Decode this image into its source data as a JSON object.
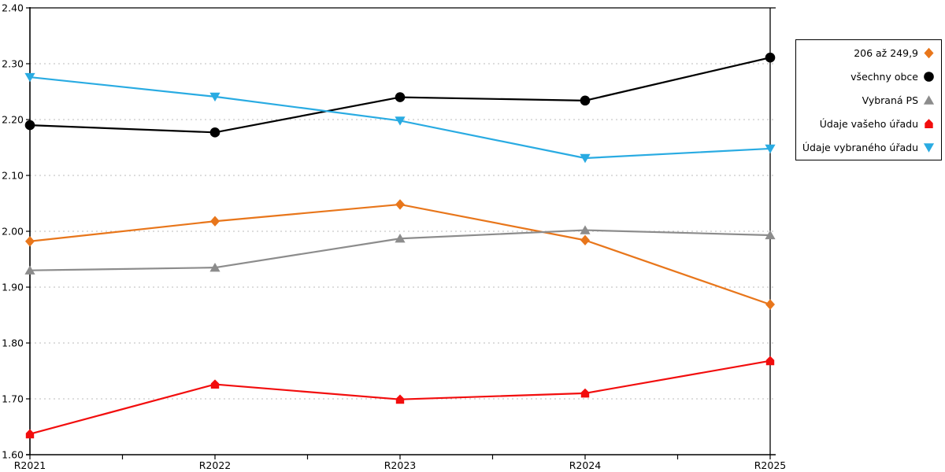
{
  "chart_data": {
    "type": "line",
    "title": "",
    "xlabel": "",
    "ylabel": "",
    "categories": [
      "R2021",
      "R2022",
      "R2023",
      "R2024",
      "R2025"
    ],
    "series": [
      {
        "name": "206 až 249,9",
        "marker": "diamond",
        "color": "#E8761B",
        "values": [
          1.982,
          2.018,
          2.048,
          1.984,
          1.869
        ]
      },
      {
        "name": "všechny obce",
        "marker": "circle",
        "color": "#000000",
        "values": [
          2.19,
          2.177,
          2.24,
          2.234,
          2.311
        ]
      },
      {
        "name": "Vybraná PS",
        "marker": "triangle-up",
        "color": "#8C8C8C",
        "values": [
          1.93,
          1.935,
          1.987,
          2.002,
          1.993
        ]
      },
      {
        "name": "Údaje vašeho úřadu",
        "marker": "house",
        "color": "#F20D0D",
        "values": [
          1.637,
          1.726,
          1.699,
          1.71,
          1.768
        ]
      },
      {
        "name": "Údaje vybraného úřadu",
        "marker": "triangle-down",
        "color": "#29ABE2",
        "values": [
          2.276,
          2.241,
          2.198,
          2.131,
          2.148
        ]
      }
    ],
    "ylim": [
      1.6,
      2.4
    ],
    "ytick_step": 0.1,
    "y_tick_labels": [
      "1.60",
      "1.70",
      "1.80",
      "1.90",
      "2.00",
      "2.10",
      "2.20",
      "2.30",
      "2.40"
    ],
    "x_tick_labels": [
      "R2021",
      "R2022",
      "R2023",
      "R2024",
      "R2025"
    ],
    "grid": "horizontal-dotted",
    "gridline_color": "#BBBBBB",
    "axis_color": "#000000",
    "legend_position": "right",
    "has_minor_x_ticks": true
  }
}
